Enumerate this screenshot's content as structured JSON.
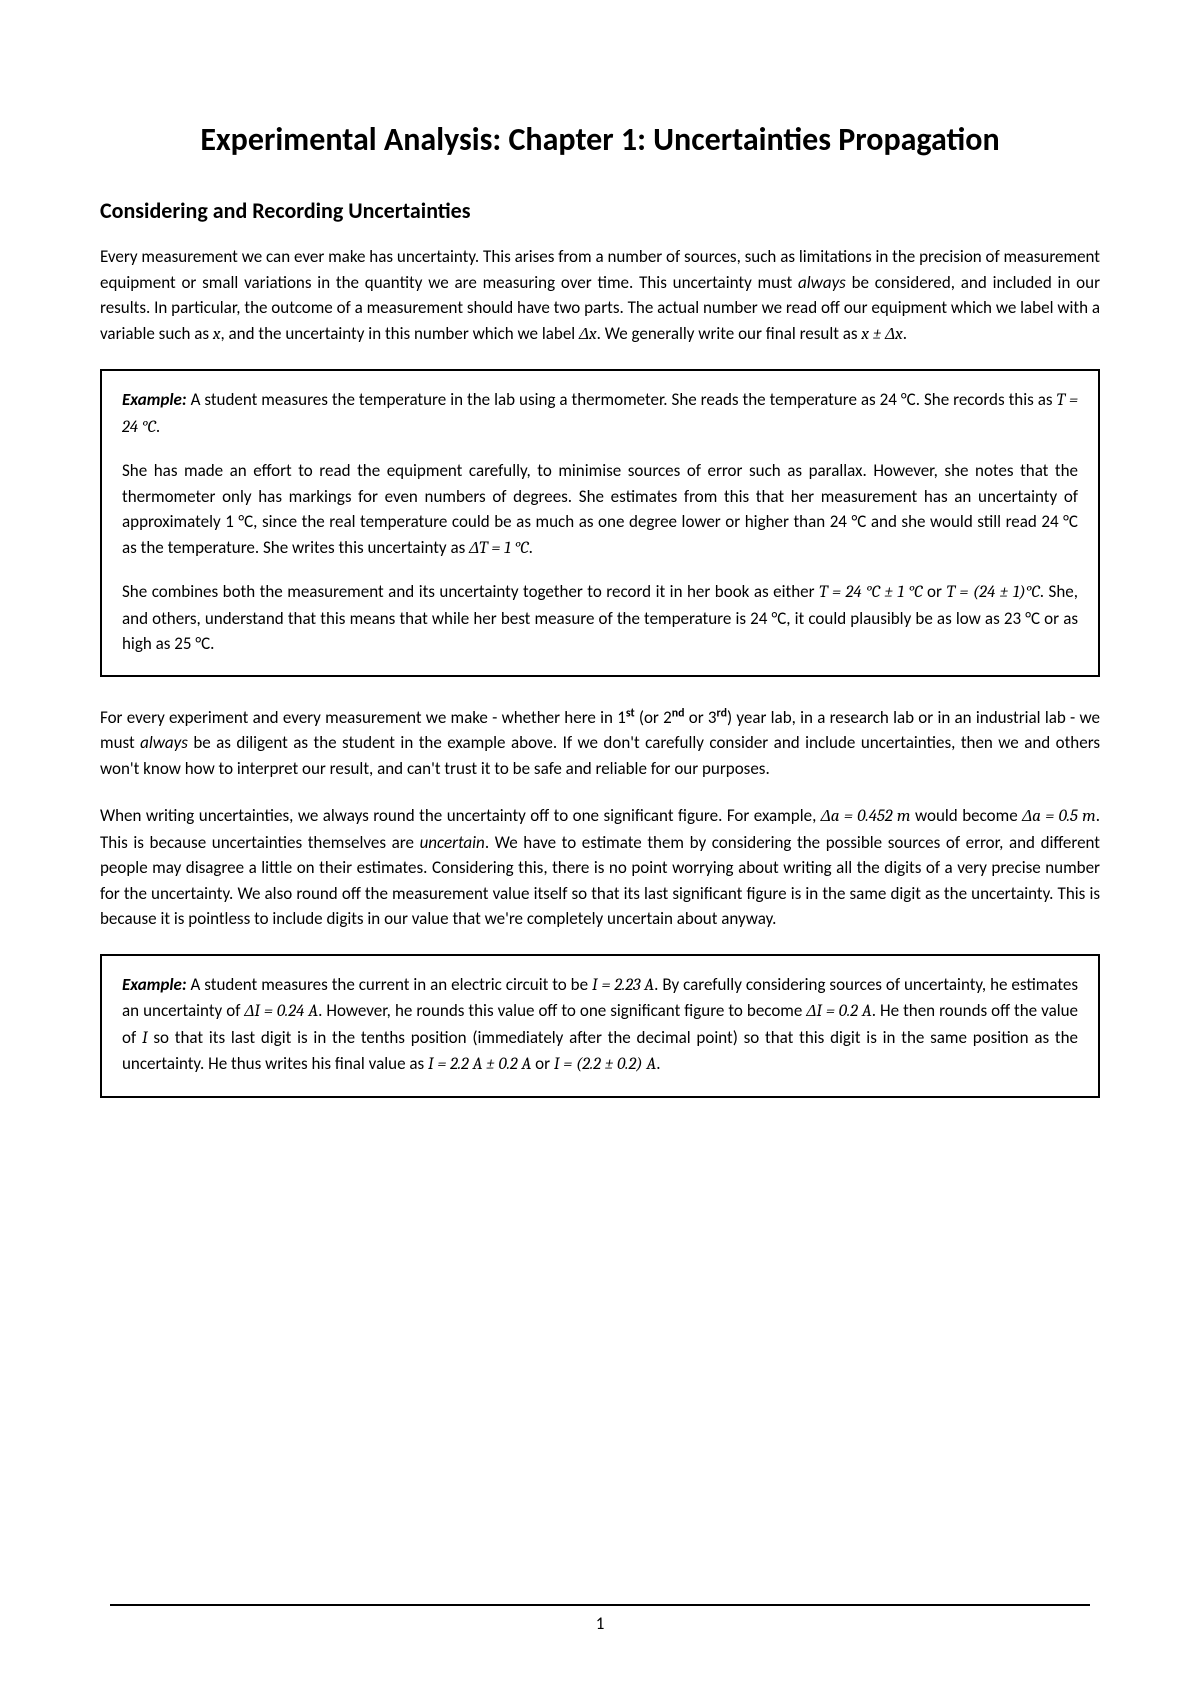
{
  "title": "Experimental Analysis: Chapter 1: Uncertainties Propagation",
  "section_heading": "Considering and Recording Uncertainties",
  "para1_a": "Every measurement we can ever make has uncertainty. This arises from a number of sources, such as limitations in the precision of measurement equipment or small variations in the quantity we are measuring over time. This uncertainty must ",
  "para1_always": "always",
  "para1_b": " be considered, and included in our results. In particular, the outcome of a measurement should have two parts. The actual number we read off our equipment which we label with a variable such as ",
  "para1_x": "x",
  "para1_c": ", and the uncertainty in this number which we label ",
  "para1_dx": "Δx",
  "para1_d": ". We generally write our final result as ",
  "para1_xpm": "x ± Δx",
  "para1_e": ".",
  "ex1_label": "Example:",
  "ex1_p1_a": " A student measures the temperature in the lab using a thermometer. She reads the temperature as 24 °C. She records this as ",
  "ex1_p1_eq": "T = 24 °C",
  "ex1_p1_b": ".",
  "ex1_p2": "She has made an effort to read the equipment carefully, to minimise sources of error such as parallax. However, she notes that the thermometer only has markings for even numbers of degrees. She estimates from this that her measurement has an uncertainty of approximately 1 °C, since the real temperature could be as much as one degree lower or higher than 24 °C and she would still read 24 °C as the temperature. She writes this uncertainty as ",
  "ex1_p2_eq": "ΔT = 1 °C",
  "ex1_p2_b": ".",
  "ex1_p3_a": "She combines both the measurement and its uncertainty together to record it in her book as either ",
  "ex1_p3_eq1": "T = 24 °C ± 1 °C",
  "ex1_p3_b": " or ",
  "ex1_p3_eq2": "T = (24 ± 1)°C",
  "ex1_p3_c": ". She, and others, understand that this means that while her best measure of the temperature is 24 °C, it could plausibly be as low as 23 °C or as high as 25 °C.",
  "para2_a": "For every experiment and every measurement we make - whether here in 1",
  "para2_st": "st",
  "para2_b": " (or 2",
  "para2_nd": "nd",
  "para2_c": " or 3",
  "para2_rd": "rd",
  "para2_d": ") year lab, in a research lab or in an industrial lab - we must ",
  "para2_always": "always",
  "para2_e": " be as diligent as the student in the example above. If we don't carefully consider and include uncertainties, then we and others won't know how to interpret our result, and can't trust it to be safe and reliable for our purposes.",
  "para3_a": "When writing uncertainties, we always round the uncertainty off to one significant figure. For example, ",
  "para3_eq1": "Δa = 0.452 m",
  "para3_b": " would become ",
  "para3_eq2": "Δa = 0.5 m",
  "para3_c": ". This is because uncertainties themselves are ",
  "para3_uncertain": "uncertain",
  "para3_d": ". We have to estimate them by considering the possible sources of error, and different people may disagree a little on their estimates. Considering this, there is no point worrying about writing all the digits of a very precise number for the uncertainty. We also round off the measurement value itself so that its last significant figure is in the same digit as the uncertainty. This is because it is pointless to include digits in our value that we're completely uncertain about anyway.",
  "ex2_label": "Example:",
  "ex2_a": " A student measures the current in an electric circuit to be ",
  "ex2_eq1": "I = 2.23 A",
  "ex2_b": ". By carefully considering sources of uncertainty, he estimates an uncertainty of ",
  "ex2_eq2": "ΔI = 0.24 A",
  "ex2_c": ". However, he rounds this value off to one significant figure to become ",
  "ex2_eq3": "ΔI = 0.2 A",
  "ex2_d": ". He then rounds off the value of ",
  "ex2_I": "I",
  "ex2_e": " so that its last digit is in the tenths position (immediately after the decimal point) so that this digit is in the same position as the uncertainty. He thus writes his final value as ",
  "ex2_eq4": "I = 2.2 A ± 0.2 A",
  "ex2_f": " or ",
  "ex2_eq5": "I = (2.2 ± 0.2) A",
  "ex2_g": ".",
  "page_number": "1",
  "colors": {
    "text": "#000000",
    "background": "#ffffff",
    "border": "#000000"
  },
  "typography": {
    "title_fontsize": 32,
    "heading_fontsize": 22,
    "body_fontsize": 17,
    "font_family": "Calibri"
  }
}
